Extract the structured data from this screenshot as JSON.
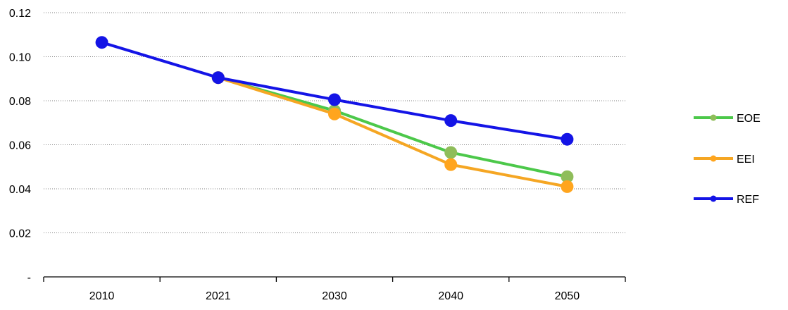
{
  "chart_data": {
    "type": "line",
    "title": "",
    "xlabel": "",
    "ylabel": "",
    "categories": [
      "2010",
      "2021",
      "2030",
      "2040",
      "2050"
    ],
    "ylim": [
      0,
      0.12
    ],
    "yticks": [
      0,
      0.02,
      0.04,
      0.06,
      0.08,
      0.1,
      0.12
    ],
    "ytick_labels": [
      "-",
      "0.02",
      "0.04",
      "0.06",
      "0.08",
      "0.10",
      "0.12"
    ],
    "grid": "horizontal dotted",
    "legend_position": "right",
    "series": [
      {
        "name": "EOE",
        "line_color": "#4cc84a",
        "marker_color": "#8fbd5a",
        "values": [
          null,
          0.0905,
          0.0755,
          0.0565,
          0.0455
        ]
      },
      {
        "name": "EEI",
        "line_color": "#f5a623",
        "marker_color": "#ffa51e",
        "values": [
          null,
          0.0905,
          0.074,
          0.051,
          0.041
        ]
      },
      {
        "name": "REF",
        "line_color": "#1414e6",
        "marker_color": "#1414e6",
        "values": [
          0.1065,
          0.0905,
          0.0805,
          0.071,
          0.0625
        ]
      }
    ]
  }
}
